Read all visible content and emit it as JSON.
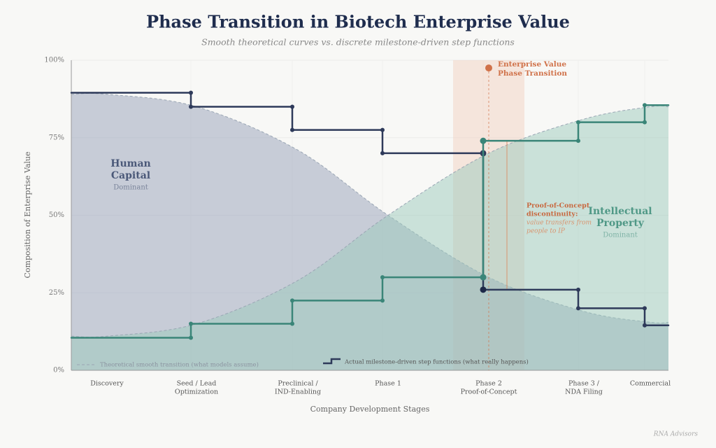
{
  "chart_data": {
    "type": "step",
    "title": "Phase Transition in Biotech Enterprise Value",
    "subtitle": "Smooth theoretical curves vs. discrete milestone-driven step functions",
    "y_label": "Composition of Enterprise Value",
    "x_label": "Company Development Stages",
    "categories": [
      [
        "Discovery"
      ],
      [
        "Seed / Lead",
        "Optimization"
      ],
      [
        "Preclinical /",
        "IND-Enabling"
      ],
      [
        "Phase 1"
      ],
      [
        "Phase 2",
        "Proof-of-Concept"
      ],
      [
        "Phase 3 /",
        "NDA Filing"
      ],
      [
        "Commercial"
      ]
    ],
    "ylim": [
      0,
      100
    ],
    "yticks": [
      {
        "value": 0,
        "label": "0%"
      },
      {
        "value": 25,
        "label": "25%"
      },
      {
        "value": 50,
        "label": "50%"
      },
      {
        "value": 75,
        "label": "75%"
      },
      {
        "value": 100,
        "label": "100%"
      }
    ],
    "grid": true,
    "series": [
      {
        "name": [
          "Human",
          "Capital"
        ],
        "tag": "Dominant",
        "color": "#2e3a5a",
        "area_color": "#9ea7bd",
        "values": [
          89.5,
          85,
          77.5,
          70,
          26,
          20,
          14.5
        ],
        "smooth_values": [
          89,
          85,
          71,
          50,
          30,
          19,
          15.5
        ]
      },
      {
        "name": [
          "Intellectual",
          "Property"
        ],
        "tag": "Dominant",
        "color": "#3a8578",
        "area_color": "#9ccabc",
        "values": [
          10.5,
          15,
          22.5,
          30,
          74,
          80,
          85.5
        ],
        "smooth_values": [
          11,
          15,
          29,
          50,
          70,
          81,
          85
        ]
      }
    ],
    "legend": {
      "smooth": "Theoretical smooth transition (what models assume)",
      "step": "Actual milestone-driven step functions (what really happens)"
    },
    "transition": {
      "lines": [
        "Enterprise Value",
        "Phase Transition"
      ],
      "value": 97.5,
      "color": "#d0724a"
    },
    "discontinuity": {
      "title": [
        "Proof-of-Concept",
        "discontinuity:"
      ],
      "text": [
        "value transfers from",
        "people to IP"
      ]
    },
    "source": "RNA Advisors"
  }
}
